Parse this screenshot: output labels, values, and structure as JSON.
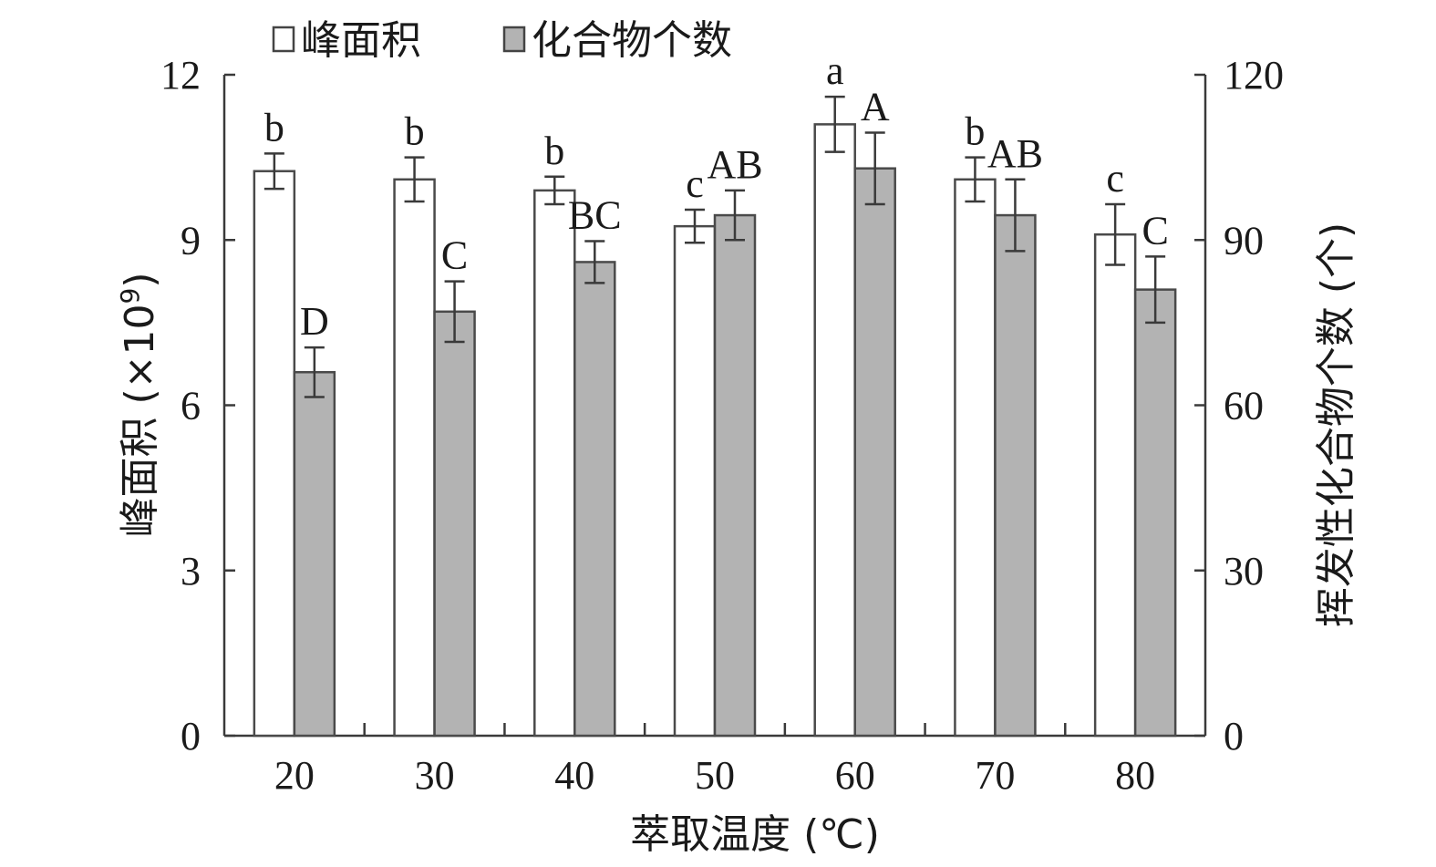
{
  "chart_data": {
    "type": "bar",
    "categories": [
      "20",
      "30",
      "40",
      "50",
      "60",
      "70",
      "80"
    ],
    "xlabel": "萃取温度 (℃)",
    "ylabel_left": {
      "text": "峰面积 (×10",
      "exponent": "9",
      "suffix": ")"
    },
    "ylabel_right": "挥发性化合物个数 (个)",
    "ylim_left": [
      0,
      12
    ],
    "ylim_right": [
      0,
      120
    ],
    "yticks_left": [
      "0",
      "3",
      "6",
      "9",
      "12"
    ],
    "yticks_right": [
      "0",
      "30",
      "60",
      "90",
      "120"
    ],
    "grid": false,
    "legend_position": "top-left",
    "series": [
      {
        "name": "峰面积",
        "axis": "left",
        "color": "#ffffff",
        "values": [
          10.25,
          10.1,
          9.9,
          9.25,
          11.1,
          10.1,
          9.1
        ],
        "errors": [
          0.32,
          0.4,
          0.25,
          0.3,
          0.5,
          0.4,
          0.55
        ],
        "labels": [
          "b",
          "b",
          "b",
          "c",
          "a",
          "b",
          "c"
        ]
      },
      {
        "name": "化合物个数",
        "axis": "right",
        "color": "#b3b3b3",
        "values": [
          66,
          77,
          86,
          94.5,
          103,
          94.5,
          81
        ],
        "errors": [
          4.5,
          5.5,
          3.8,
          4.5,
          6.5,
          6.5,
          6
        ],
        "labels": [
          "D",
          "C",
          "BC",
          "AB",
          "A",
          "AB",
          "C"
        ]
      }
    ]
  }
}
